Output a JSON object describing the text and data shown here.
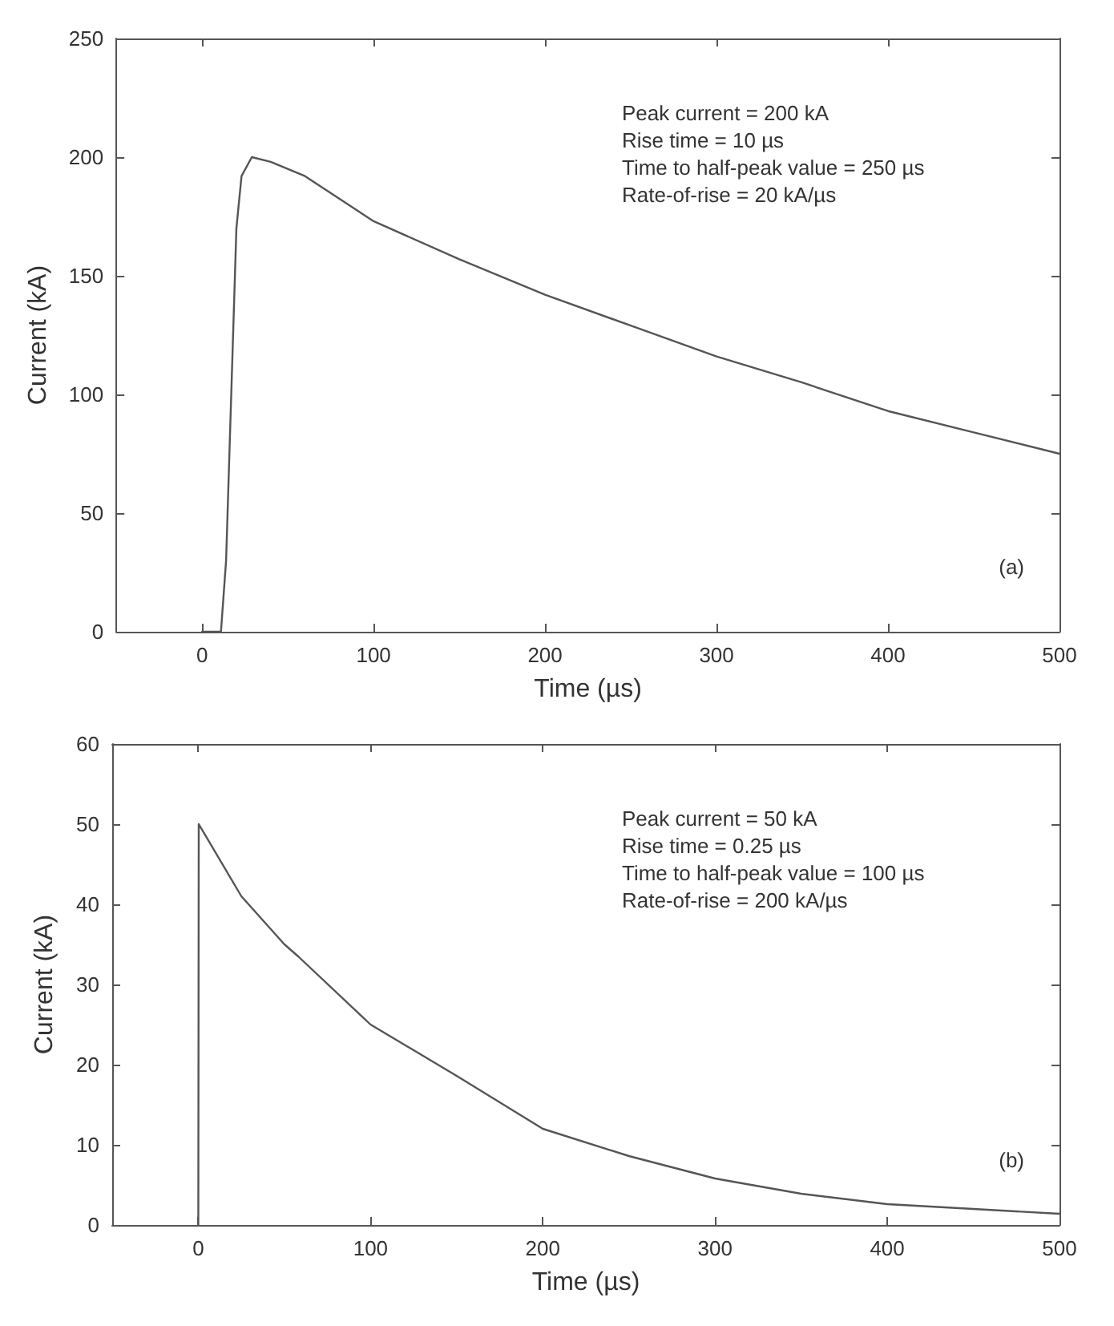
{
  "chart_data": [
    {
      "type": "line",
      "title": "(a)",
      "xlabel": "Time (µs)",
      "ylabel": "Current (kA)",
      "annotations": [
        "Peak current = 200 kA",
        "Rise time = 10 µs",
        "Time to half-peak value = 250 µs",
        "Rate-of-rise = 20 kA/µs"
      ],
      "xlim": [
        -50,
        500
      ],
      "ylim": [
        0,
        250
      ],
      "xticks": [
        0,
        100,
        200,
        300,
        400,
        500
      ],
      "yticks": [
        0,
        50,
        100,
        150,
        200,
        250
      ],
      "grid": false,
      "marker": "none",
      "line_style": "solid",
      "series": [
        {
          "color": "#555555",
          "x": [
            0,
            11,
            14,
            17,
            20,
            23,
            29,
            40,
            60,
            100,
            150,
            200,
            250,
            300,
            350,
            400,
            450,
            500
          ],
          "values": [
            0,
            0,
            30,
            100,
            170,
            192,
            200,
            198,
            192,
            173,
            157,
            142,
            129,
            116,
            105,
            93,
            84,
            75
          ]
        }
      ]
    },
    {
      "type": "line",
      "title": "(b)",
      "xlabel": "Time (µs)",
      "ylabel": "Current (kA)",
      "annotations": [
        "Peak current = 50 kA",
        "Rise time = 0.25 µs",
        "Time to half-peak value = 100 µs",
        "Rate-of-rise = 200 kA/µs"
      ],
      "xlim": [
        -50,
        500
      ],
      "ylim": [
        0,
        60
      ],
      "xticks": [
        0,
        100,
        200,
        300,
        400,
        500
      ],
      "yticks": [
        0,
        10,
        20,
        30,
        40,
        50,
        60
      ],
      "grid": false,
      "marker": "none",
      "line_style": "solid",
      "series": [
        {
          "color": "#555555",
          "x": [
            0,
            0.25,
            25,
            50,
            58,
            100,
            150,
            200,
            250,
            300,
            350,
            400,
            450,
            500
          ],
          "values": [
            0,
            50,
            41,
            35,
            33.5,
            25,
            18.6,
            12,
            8.6,
            5.8,
            3.9,
            2.6,
            2,
            1.4
          ]
        }
      ]
    }
  ]
}
